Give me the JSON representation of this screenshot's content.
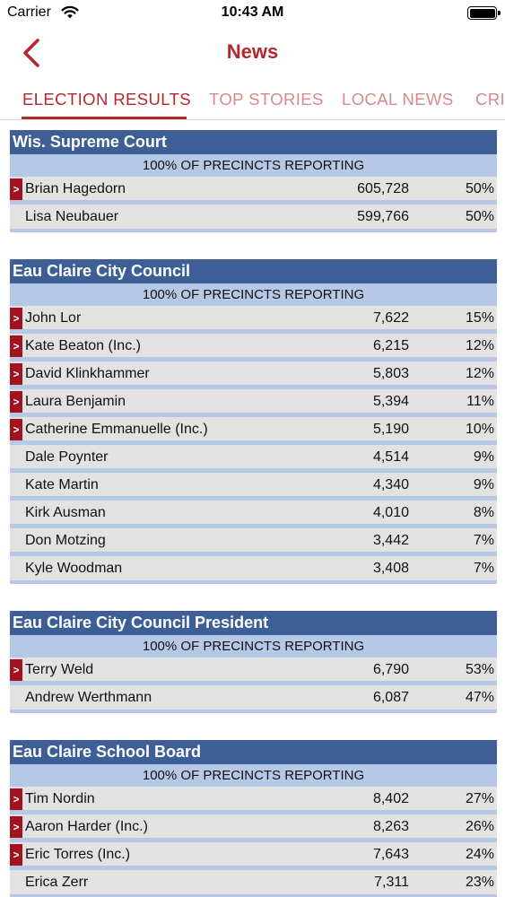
{
  "status_bar": {
    "carrier": "Carrier",
    "time": "10:43 AM"
  },
  "nav": {
    "title": "News",
    "accent_color": "#b5272d"
  },
  "tabs": [
    {
      "label": "ELECTION RESULTS",
      "active": true
    },
    {
      "label": "TOP STORIES",
      "active": false
    },
    {
      "label": "LOCAL NEWS",
      "active": false
    },
    {
      "label": "CRI",
      "active": false
    }
  ],
  "colors": {
    "race_header": "#3e5f95",
    "reporting_band": "#b7c7e6",
    "row_background": "#e2e2e2",
    "winner_mark": "#a3131f"
  },
  "races": [
    {
      "title": "Wis. Supreme Court",
      "reporting": "100% OF PRECINCTS REPORTING",
      "candidates": [
        {
          "name": "Brian Hagedorn",
          "votes": "605,728",
          "pct": "50%",
          "winner": true
        },
        {
          "name": "Lisa Neubauer",
          "votes": "599,766",
          "pct": "50%",
          "winner": false
        }
      ]
    },
    {
      "title": "Eau Claire City Council",
      "reporting": "100% OF PRECINCTS REPORTING",
      "candidates": [
        {
          "name": "John Lor",
          "votes": "7,622",
          "pct": "15%",
          "winner": true
        },
        {
          "name": "Kate Beaton (Inc.)",
          "votes": "6,215",
          "pct": "12%",
          "winner": true
        },
        {
          "name": "David Klinkhammer",
          "votes": "5,803",
          "pct": "12%",
          "winner": true
        },
        {
          "name": "Laura Benjamin",
          "votes": "5,394",
          "pct": "11%",
          "winner": true
        },
        {
          "name": "Catherine Emmanuelle (Inc.)",
          "votes": "5,190",
          "pct": "10%",
          "winner": true
        },
        {
          "name": "Dale Poynter",
          "votes": "4,514",
          "pct": "9%",
          "winner": false
        },
        {
          "name": "Kate Martin",
          "votes": "4,340",
          "pct": "9%",
          "winner": false
        },
        {
          "name": "Kirk Ausman",
          "votes": "4,010",
          "pct": "8%",
          "winner": false
        },
        {
          "name": "Don Motzing",
          "votes": "3,442",
          "pct": "7%",
          "winner": false
        },
        {
          "name": "Kyle Woodman",
          "votes": "3,408",
          "pct": "7%",
          "winner": false
        }
      ]
    },
    {
      "title": "Eau Claire City Council President",
      "reporting": "100% OF PRECINCTS REPORTING",
      "candidates": [
        {
          "name": "Terry Weld",
          "votes": "6,790",
          "pct": "53%",
          "winner": true
        },
        {
          "name": "Andrew Werthmann",
          "votes": "6,087",
          "pct": "47%",
          "winner": false
        }
      ]
    },
    {
      "title": "Eau Claire School Board",
      "reporting": "100% OF PRECINCTS REPORTING",
      "candidates": [
        {
          "name": "Tim Nordin",
          "votes": "8,402",
          "pct": "27%",
          "winner": true
        },
        {
          "name": "Aaron Harder (Inc.)",
          "votes": "8,263",
          "pct": "26%",
          "winner": true
        },
        {
          "name": "Eric Torres (Inc.)",
          "votes": "7,643",
          "pct": "24%",
          "winner": true
        },
        {
          "name": "Erica Zerr",
          "votes": "7,311",
          "pct": "23%",
          "winner": false
        }
      ]
    }
  ],
  "winner_mark": ">"
}
